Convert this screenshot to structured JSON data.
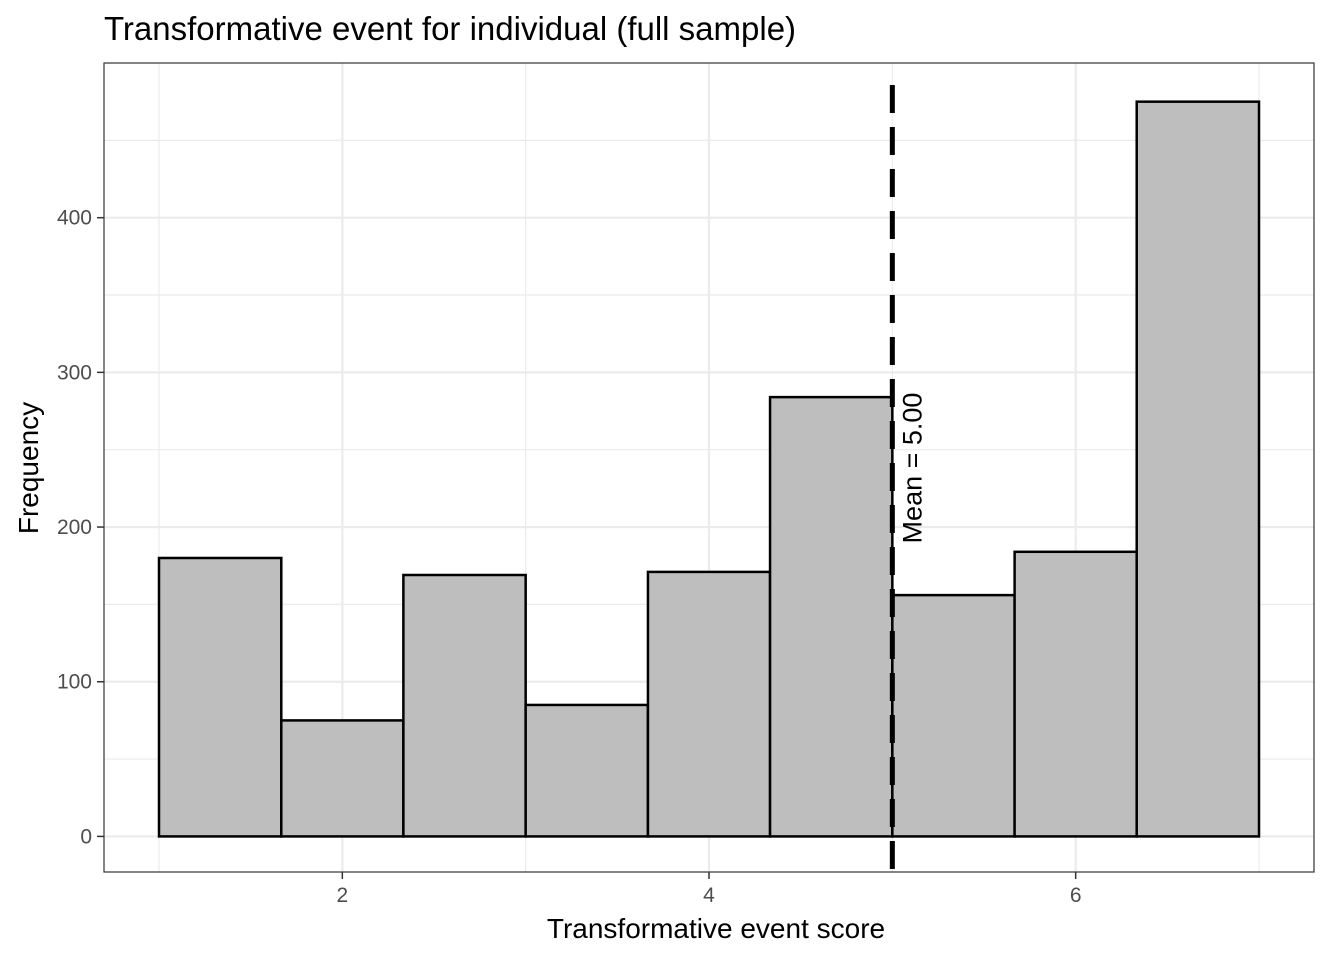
{
  "chart_data": {
    "type": "bar",
    "title": "Transformative event for individual (full sample)",
    "xlabel": "Transformative event score",
    "ylabel": "Frequency",
    "bins": [
      {
        "x0": 1.0,
        "x1": 1.667,
        "count": 180
      },
      {
        "x0": 1.667,
        "x1": 2.333,
        "count": 75
      },
      {
        "x0": 2.333,
        "x1": 3.0,
        "count": 169
      },
      {
        "x0": 3.0,
        "x1": 3.667,
        "count": 85
      },
      {
        "x0": 3.667,
        "x1": 4.333,
        "count": 171
      },
      {
        "x0": 4.333,
        "x1": 5.0,
        "count": 284
      },
      {
        "x0": 5.0,
        "x1": 5.667,
        "count": 156
      },
      {
        "x0": 5.667,
        "x1": 6.333,
        "count": 184
      },
      {
        "x0": 6.333,
        "x1": 7.0,
        "count": 475
      }
    ],
    "xlim": [
      0.7,
      7.3
    ],
    "ylim": [
      -23,
      500
    ],
    "x_ticks": [
      2,
      4,
      6
    ],
    "y_ticks": [
      0,
      100,
      200,
      300,
      400
    ],
    "mean": 5.0,
    "mean_label": "Mean = 5.00",
    "grid": true,
    "bar_fill": "#bebebe",
    "bar_stroke": "#000000"
  }
}
